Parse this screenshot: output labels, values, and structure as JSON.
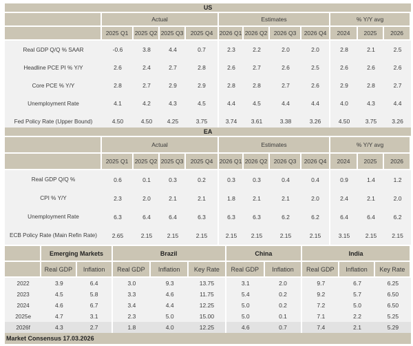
{
  "us": {
    "title": "US",
    "groups": [
      "Actual",
      "Estimates",
      "% Y/Y avg"
    ],
    "columns": [
      "2025 Q1",
      "2025 Q2",
      "2025 Q3",
      "2025 Q4",
      "2026 Q1",
      "2026 Q2",
      "2026 Q3",
      "2026 Q4",
      "2024",
      "2025",
      "2026"
    ],
    "rows": [
      {
        "label": "Real GDP Q/Q % SAAR",
        "values": [
          "-0.6",
          "3.8",
          "4.4",
          "0.7",
          "2.3",
          "2.2",
          "2.0",
          "2.0",
          "2.8",
          "2.1",
          "2.5"
        ]
      },
      {
        "label": "Headline PCE PI % Y/Y",
        "values": [
          "2.6",
          "2.4",
          "2.7",
          "2.8",
          "2.6",
          "2.7",
          "2.6",
          "2.5",
          "2.6",
          "2.6",
          "2.6"
        ]
      },
      {
        "label": "Core PCE % Y/Y",
        "values": [
          "2.8",
          "2.7",
          "2.9",
          "2.9",
          "2.8",
          "2.8",
          "2.7",
          "2.6",
          "2.9",
          "2.8",
          "2.7"
        ]
      },
      {
        "label": "Unemployment Rate",
        "values": [
          "4.1",
          "4.2",
          "4.3",
          "4.5",
          "4.4",
          "4.5",
          "4.4",
          "4.4",
          "4.0",
          "4.3",
          "4.4"
        ]
      },
      {
        "label": "Fed Policy Rate (Upper Bound)",
        "values": [
          "4.50",
          "4.50",
          "4.25",
          "3.75",
          "3.74",
          "3.61",
          "3.38",
          "3.26",
          "4.50",
          "3.75",
          "3.26"
        ]
      }
    ]
  },
  "ea": {
    "title": "EA",
    "groups": [
      "Actual",
      "Estimates",
      "% Y/Y avg"
    ],
    "columns": [
      "2025 Q1",
      "2025 Q2",
      "2025 Q3",
      "2025 Q4",
      "2026 Q1",
      "2026 Q2",
      "2026 Q3",
      "2026 Q4",
      "2024",
      "2025",
      "2026"
    ],
    "rows": [
      {
        "label": "Real GDP Q/Q %",
        "values": [
          "0.6",
          "0.1",
          "0.3",
          "0.2",
          "0.3",
          "0.3",
          "0.4",
          "0.4",
          "0.9",
          "1.4",
          "1.2"
        ]
      },
      {
        "label": "CPI % Y/Y",
        "values": [
          "2.3",
          "2.0",
          "2.1",
          "2.1",
          "1.8",
          "2.1",
          "2.1",
          "2.0",
          "2.4",
          "2.1",
          "2.0"
        ]
      },
      {
        "label": "Unemployment Rate",
        "values": [
          "6.3",
          "6.4",
          "6.4",
          "6.3",
          "6.3",
          "6.3",
          "6.2",
          "6.2",
          "6.4",
          "6.4",
          "6.2"
        ]
      },
      {
        "label": "ECB Policy Rate (Main Refin Rate)",
        "values": [
          "2.65",
          "2.15",
          "2.15",
          "2.15",
          "2.15",
          "2.15",
          "2.15",
          "2.15",
          "3.15",
          "2.15",
          "2.15"
        ]
      }
    ]
  },
  "em": {
    "groups": [
      "Emerging Markets",
      "Brazil",
      "China",
      "India"
    ],
    "columns": [
      "Real GDP",
      "Inflation",
      "Real GDP",
      "Inflation",
      "Key Rate",
      "Real GDP",
      "Inflation",
      "Real GDP",
      "Inflation",
      "Key Rate"
    ],
    "rows": [
      {
        "label": "2022",
        "values": [
          "3.9",
          "6.4",
          "3.0",
          "9.3",
          "13.75",
          "3.1",
          "2.0",
          "9.7",
          "6.7",
          "6.25"
        ]
      },
      {
        "label": "2023",
        "values": [
          "4.5",
          "5.8",
          "3.3",
          "4.6",
          "11.75",
          "5.4",
          "0.2",
          "9.2",
          "5.7",
          "6.50"
        ]
      },
      {
        "label": "2024",
        "values": [
          "4.6",
          "6.7",
          "3.4",
          "4.4",
          "12.25",
          "5.0",
          "0.2",
          "7.2",
          "5.0",
          "6.50"
        ]
      },
      {
        "label": "2025e",
        "values": [
          "4.7",
          "3.1",
          "2.3",
          "5.0",
          "15.00",
          "5.0",
          "0.1",
          "7.1",
          "2.2",
          "5.25"
        ]
      },
      {
        "label": "2026f",
        "values": [
          "4.3",
          "2.7",
          "1.8",
          "4.0",
          "12.25",
          "4.6",
          "0.7",
          "7.4",
          "2.1",
          "5.29"
        ]
      }
    ],
    "footer": "Market Consensus 17.03.2026"
  }
}
